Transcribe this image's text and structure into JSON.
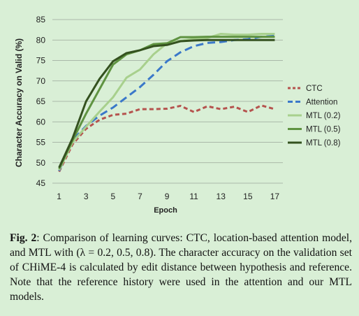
{
  "chart_data": {
    "type": "line",
    "title": "",
    "xlabel": "Epoch",
    "ylabel": "Character Accuracy on Valid (%)",
    "xlim": [
      0.5,
      17.6
    ],
    "ylim": [
      45,
      85
    ],
    "x_ticks": [
      1,
      3,
      5,
      7,
      9,
      11,
      13,
      15,
      17
    ],
    "y_ticks": [
      45,
      50,
      55,
      60,
      65,
      70,
      75,
      80,
      85
    ],
    "grid": "horizontal",
    "legend_position": "right",
    "x": [
      1,
      2,
      3,
      4,
      5,
      6,
      7,
      8,
      9,
      10,
      11,
      12,
      13,
      14,
      15,
      16,
      17
    ],
    "series": [
      {
        "name": "CTC",
        "color": "#b5534e",
        "dash": "dashed",
        "values": [
          47.8,
          54.5,
          58.3,
          60.5,
          61.7,
          62.0,
          63.1,
          63.1,
          63.2,
          63.9,
          62.4,
          63.8,
          63.1,
          63.7,
          62.4,
          64.0,
          63.1
        ]
      },
      {
        "name": "Attention",
        "color": "#3a78c9",
        "dash": "dashed-long",
        "values": [
          48.0,
          55.5,
          59.0,
          61.5,
          63.5,
          66.0,
          68.5,
          71.5,
          74.8,
          77.0,
          78.5,
          79.3,
          79.5,
          80.0,
          80.2,
          80.8,
          81.0
        ]
      },
      {
        "name": "MTL (0.2)",
        "color": "#a8d08d",
        "dash": "solid",
        "values": [
          48.2,
          55.0,
          58.8,
          62.5,
          66.0,
          70.8,
          72.8,
          76.5,
          79.2,
          79.8,
          80.3,
          80.5,
          81.5,
          81.3,
          81.3,
          81.5,
          81.5
        ]
      },
      {
        "name": "MTL (0.5)",
        "color": "#5f9341",
        "dash": "solid",
        "values": [
          48.5,
          55.5,
          62.0,
          68.0,
          74.0,
          76.5,
          77.5,
          79.0,
          79.2,
          80.7,
          80.7,
          80.8,
          80.8,
          80.8,
          80.8,
          80.8,
          80.8
        ]
      },
      {
        "name": "MTL (0.8)",
        "color": "#34511f",
        "dash": "solid",
        "values": [
          48.8,
          56.0,
          65.0,
          70.5,
          74.8,
          76.8,
          77.5,
          78.5,
          78.8,
          79.7,
          79.9,
          80.0,
          80.0,
          80.0,
          80.0,
          80.0,
          80.0
        ]
      }
    ]
  },
  "caption": {
    "label": "Fig. 2",
    "text": ": Comparison of learning curves: CTC, location-based attention model, and MTL with (λ = 0.2, 0.5, 0.8). The character accuracy on the validation set of CHiME-4 is calculated by edit distance between hypothesis and reference. Note that the reference history were used in the attention and our MTL models."
  }
}
